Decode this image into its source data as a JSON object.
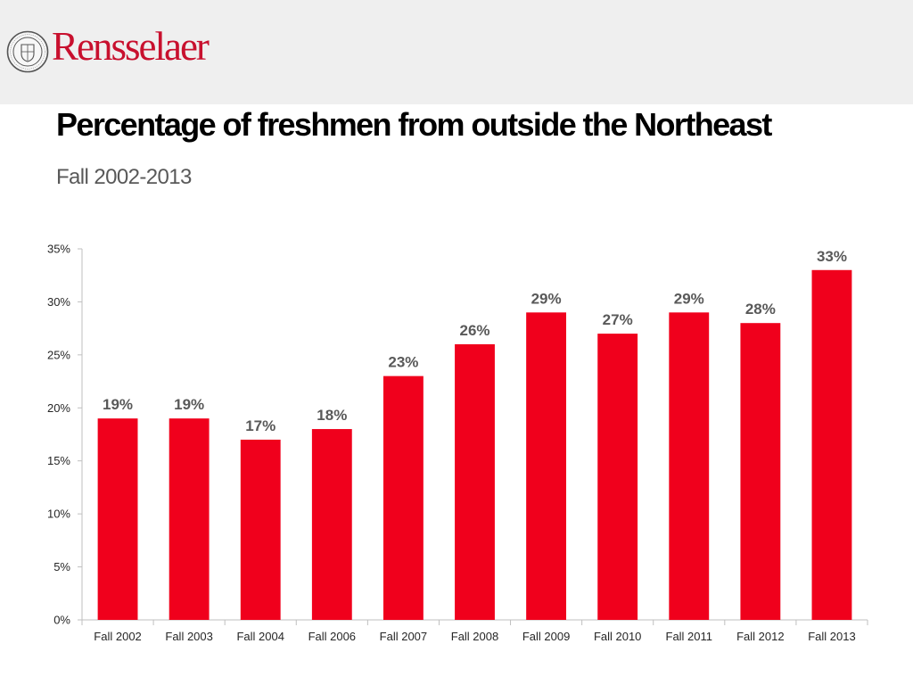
{
  "header": {
    "brand": "Rensselaer",
    "seal_icon": "rensselaer-seal-icon",
    "background": "#efefef",
    "brand_color": "#c8102e"
  },
  "slide": {
    "title": "Percentage of freshmen from outside the Northeast",
    "subtitle": "Fall 2002-2013"
  },
  "chart_data": {
    "type": "bar",
    "categories": [
      "Fall 2002",
      "Fall 2003",
      "Fall 2004",
      "Fall 2006",
      "Fall 2007",
      "Fall 2008",
      "Fall 2009",
      "Fall 2010",
      "Fall 2011",
      "Fall 2012",
      "Fall 2013"
    ],
    "values": [
      19,
      19,
      17,
      18,
      23,
      26,
      29,
      27,
      29,
      28,
      33
    ],
    "data_labels": [
      "19%",
      "19%",
      "17%",
      "18%",
      "23%",
      "26%",
      "29%",
      "27%",
      "29%",
      "28%",
      "33%"
    ],
    "y_ticks": [
      "0%",
      "5%",
      "10%",
      "15%",
      "20%",
      "25%",
      "30%",
      "35%"
    ],
    "ylim": [
      0,
      35
    ],
    "y_unit": "%",
    "bar_color": "#f0001c",
    "grid": false,
    "legend": "none"
  }
}
